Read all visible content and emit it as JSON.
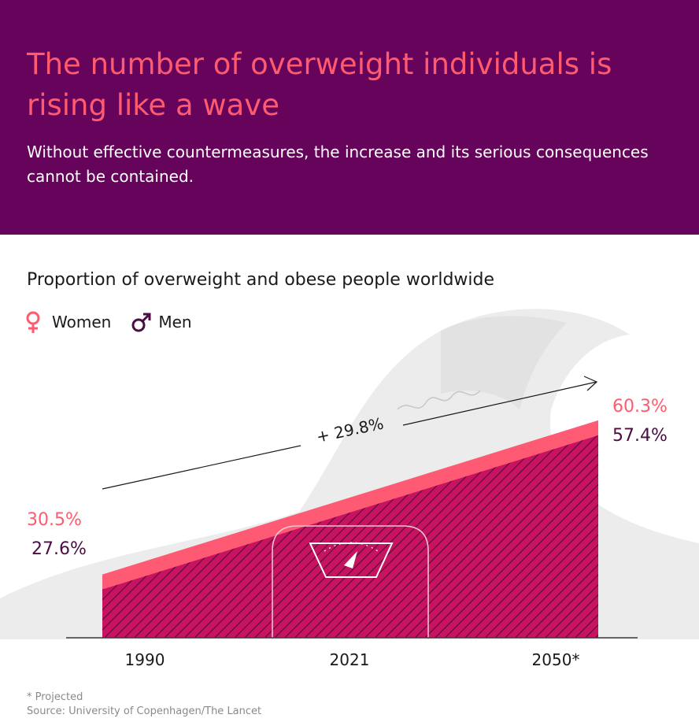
{
  "header": {
    "title": "The number of overweight individuals is rising like a wave",
    "subtitle": "Without effective countermeasures, the increase and its serious consequences cannot be contained."
  },
  "chart_data": {
    "type": "area",
    "title": "Proportion of overweight and obese people worldwide",
    "categories": [
      "1990",
      "2021",
      "2050*"
    ],
    "series": [
      {
        "name": "Women",
        "values": [
          30.5,
          null,
          60.3
        ],
        "color": "#ff4f6a"
      },
      {
        "name": "Men",
        "values": [
          27.6,
          null,
          57.4
        ],
        "color": "#c40e5a"
      }
    ],
    "labels": {
      "women_1990": "30.5%",
      "men_1990": "27.6%",
      "women_2050": "60.3%",
      "men_2050": "57.4%"
    },
    "annotation": "+ 29.8%",
    "legend": [
      {
        "label": "Women",
        "icon": "female-icon"
      },
      {
        "label": "Men",
        "icon": "male-icon"
      }
    ]
  },
  "footnote": {
    "projected": "* Projected",
    "source": "Source: University of Copenhagen/The Lancet"
  },
  "colors": {
    "header_bg": "#65045a",
    "title": "#ff5a6e",
    "women": "#ff5a6e",
    "men": "#4a0e42"
  }
}
